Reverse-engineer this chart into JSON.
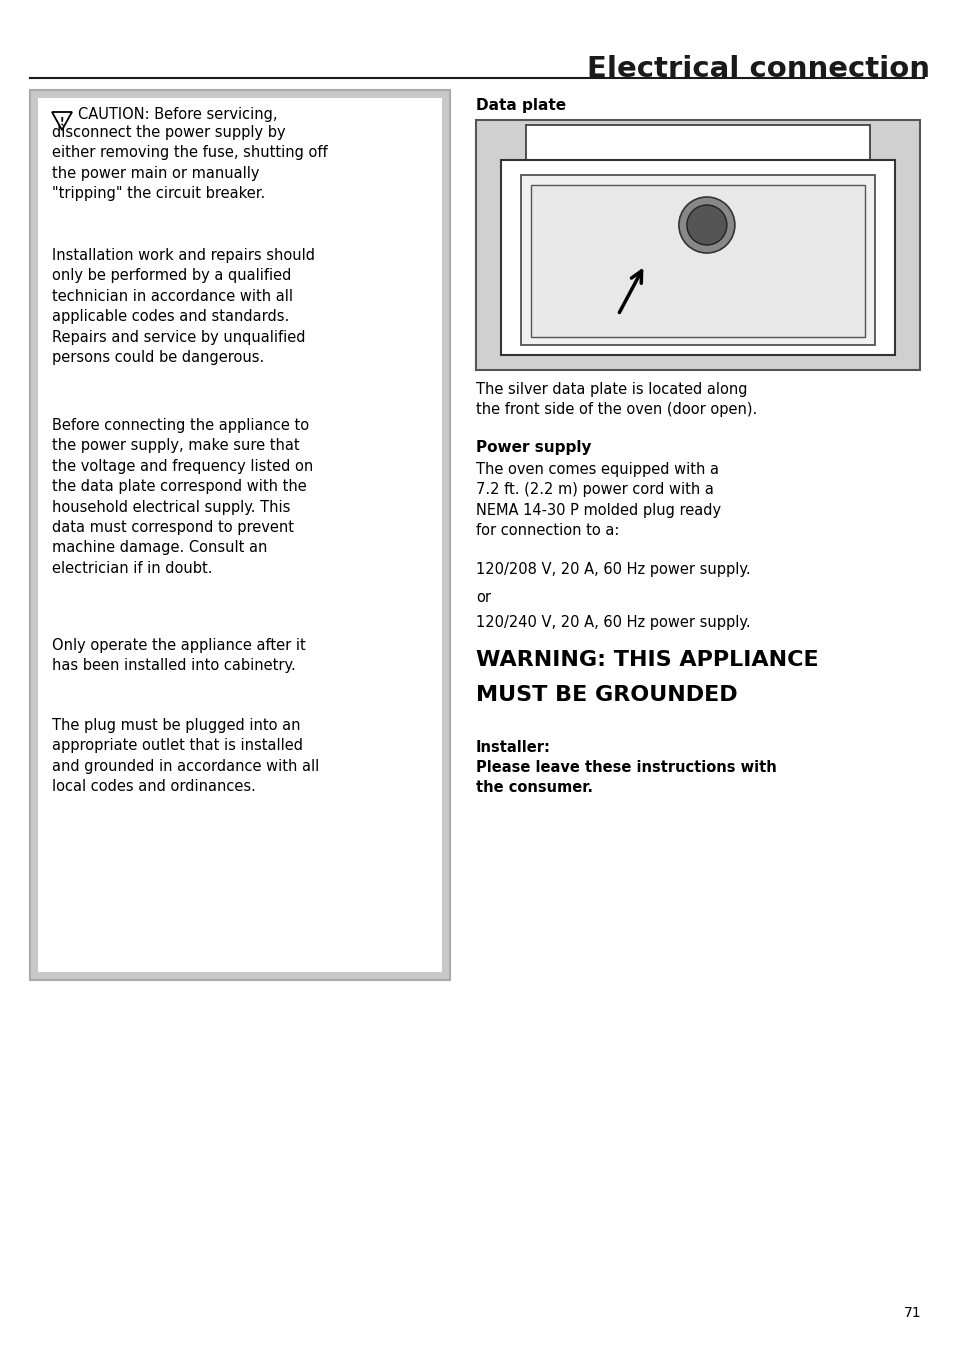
{
  "title": "Electrical connection",
  "title_fontsize": 21,
  "background_color": "#ffffff",
  "page_number": "71",
  "body_fontsize": 10.5,
  "section_label_fontsize": 11,
  "warning_fontsize": 16,
  "caution_para1_line1": "CAUTION: Before servicing,",
  "caution_para1_rest": "disconnect the power supply by\neither removing the fuse, shutting off\nthe power main or manually\n\"tripping\" the circuit breaker.",
  "caution_para2": "Installation work and repairs should\nonly be performed by a qualified\ntechnician in accordance with all\napplicable codes and standards.\nRepairs and service by unqualified\npersons could be dangerous.",
  "caution_para3": "Before connecting the appliance to\nthe power supply, make sure that\nthe voltage and frequency listed on\nthe data plate correspond with the\nhousehold electrical supply. This\ndata must correspond to prevent\nmachine damage. Consult an\nelectrician if in doubt.",
  "caution_para4": "Only operate the appliance after it\nhas been installed into cabinetry.",
  "caution_para5": "The plug must be plugged into an\nappropriate outlet that is installed\nand grounded in accordance with all\nlocal codes and ordinances.",
  "data_plate_label": "Data plate",
  "data_plate_desc": "The silver data plate is located along\nthe front side of the oven (door open).",
  "power_supply_label": "Power supply",
  "power_supply_para": "The oven comes equipped with a\n7.2 ft. (2.2 m) power cord with a\nNEMA 14-30 P molded plug ready\nfor connection to a:",
  "power_line1": "120/208 V, 20 A, 60 Hz power supply.",
  "power_or": "or",
  "power_line2": "120/240 V, 20 A, 60 Hz power supply.",
  "warning_line1": "WARNING: THIS APPLIANCE",
  "warning_line2": "MUST BE GROUNDED",
  "installer_label": "Installer:",
  "installer_body": "Please leave these instructions with\nthe consumer."
}
